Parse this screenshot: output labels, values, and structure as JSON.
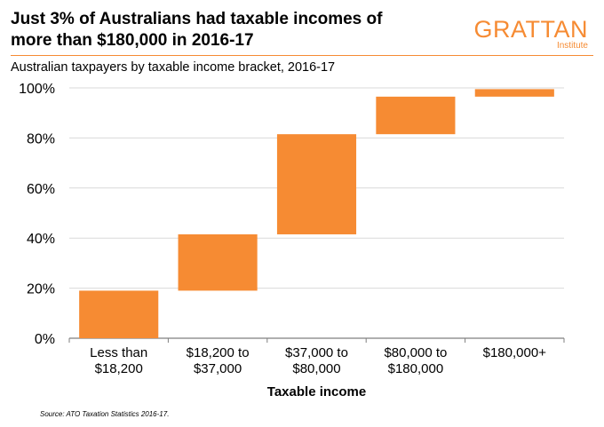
{
  "header": {
    "title_line1": "Just 3% of Australians had taxable incomes of",
    "title_line2": "more than $180,000 in 2016-17",
    "subtitle": "Australian taxpayers by taxable income bracket, 2016-17",
    "logo_main": "GRATTAN",
    "logo_sub": "Institute"
  },
  "source": "Source: ATO Taxation Statistics 2016-17.",
  "colors": {
    "bar": "#F68B33",
    "brand": "#F68B33",
    "grid": "#d9d9d9",
    "axis": "#7f7f7f"
  },
  "chart_data": {
    "type": "bar",
    "subtype": "waterfall",
    "title": "Just 3% of Australians had taxable incomes of more than $180,000 in 2016-17",
    "subtitle": "Australian taxpayers by taxable income bracket, 2016-17",
    "xlabel": "Taxable income",
    "ylabel": "",
    "categories": [
      [
        "Less than",
        "$18,200"
      ],
      [
        "$18,200 to",
        "$37,000"
      ],
      [
        "$37,000 to",
        "$80,000"
      ],
      [
        "$80,000 to",
        "$180,000"
      ],
      [
        "$180,000+"
      ]
    ],
    "values": [
      19,
      22.5,
      40,
      15,
      3
    ],
    "cumulative_start": [
      0,
      19,
      41.5,
      81.5,
      96.5
    ],
    "cumulative_end": [
      19,
      41.5,
      81.5,
      96.5,
      99.5
    ],
    "ylim": [
      0,
      100
    ],
    "yticks": [
      0,
      20,
      40,
      60,
      80,
      100
    ],
    "ytick_labels": [
      "0%",
      "20%",
      "40%",
      "60%",
      "80%",
      "100%"
    ],
    "grid": true,
    "legend": "none"
  }
}
